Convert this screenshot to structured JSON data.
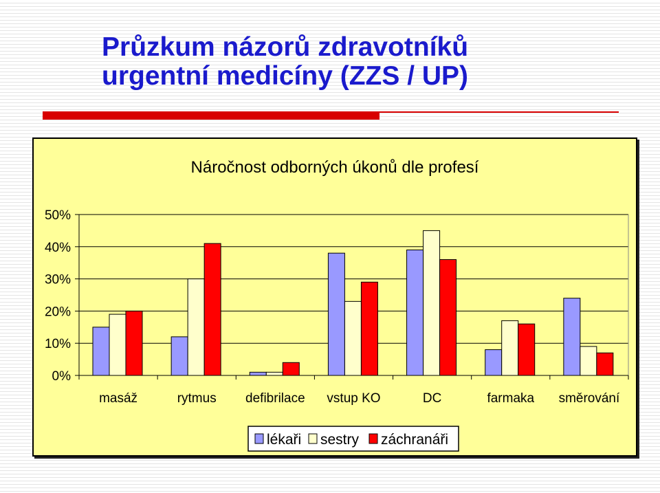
{
  "slide": {
    "title_line1": "Průzkum názorů zdravotníků",
    "title_line2": "urgentní medicíny (ZZS / UP)"
  },
  "colors": {
    "title": "#1a1acc",
    "accent": "#d80000",
    "chart_background": "#ffff99"
  },
  "chart_data": {
    "type": "bar",
    "title": "Náročnost odborných úkonů dle profesí",
    "categories": [
      "masáž",
      "rytmus",
      "defibrilace",
      "vstup KO",
      "DC",
      "farmaka",
      "směrování"
    ],
    "series": [
      {
        "name": "lékaři",
        "color": "#9999ff",
        "values": [
          15,
          12,
          1,
          38,
          39,
          8,
          24
        ]
      },
      {
        "name": "sestry",
        "color": "#ffffcc",
        "values": [
          19,
          30,
          1,
          23,
          45,
          17,
          9
        ]
      },
      {
        "name": "záchranáři",
        "color": "#ff0000",
        "values": [
          20,
          41,
          4,
          29,
          36,
          16,
          7
        ]
      }
    ],
    "ylim": [
      0,
      50
    ],
    "yticks": [
      "0%",
      "10%",
      "20%",
      "30%",
      "40%",
      "50%"
    ],
    "grid": true,
    "legend_position": "bottom"
  }
}
